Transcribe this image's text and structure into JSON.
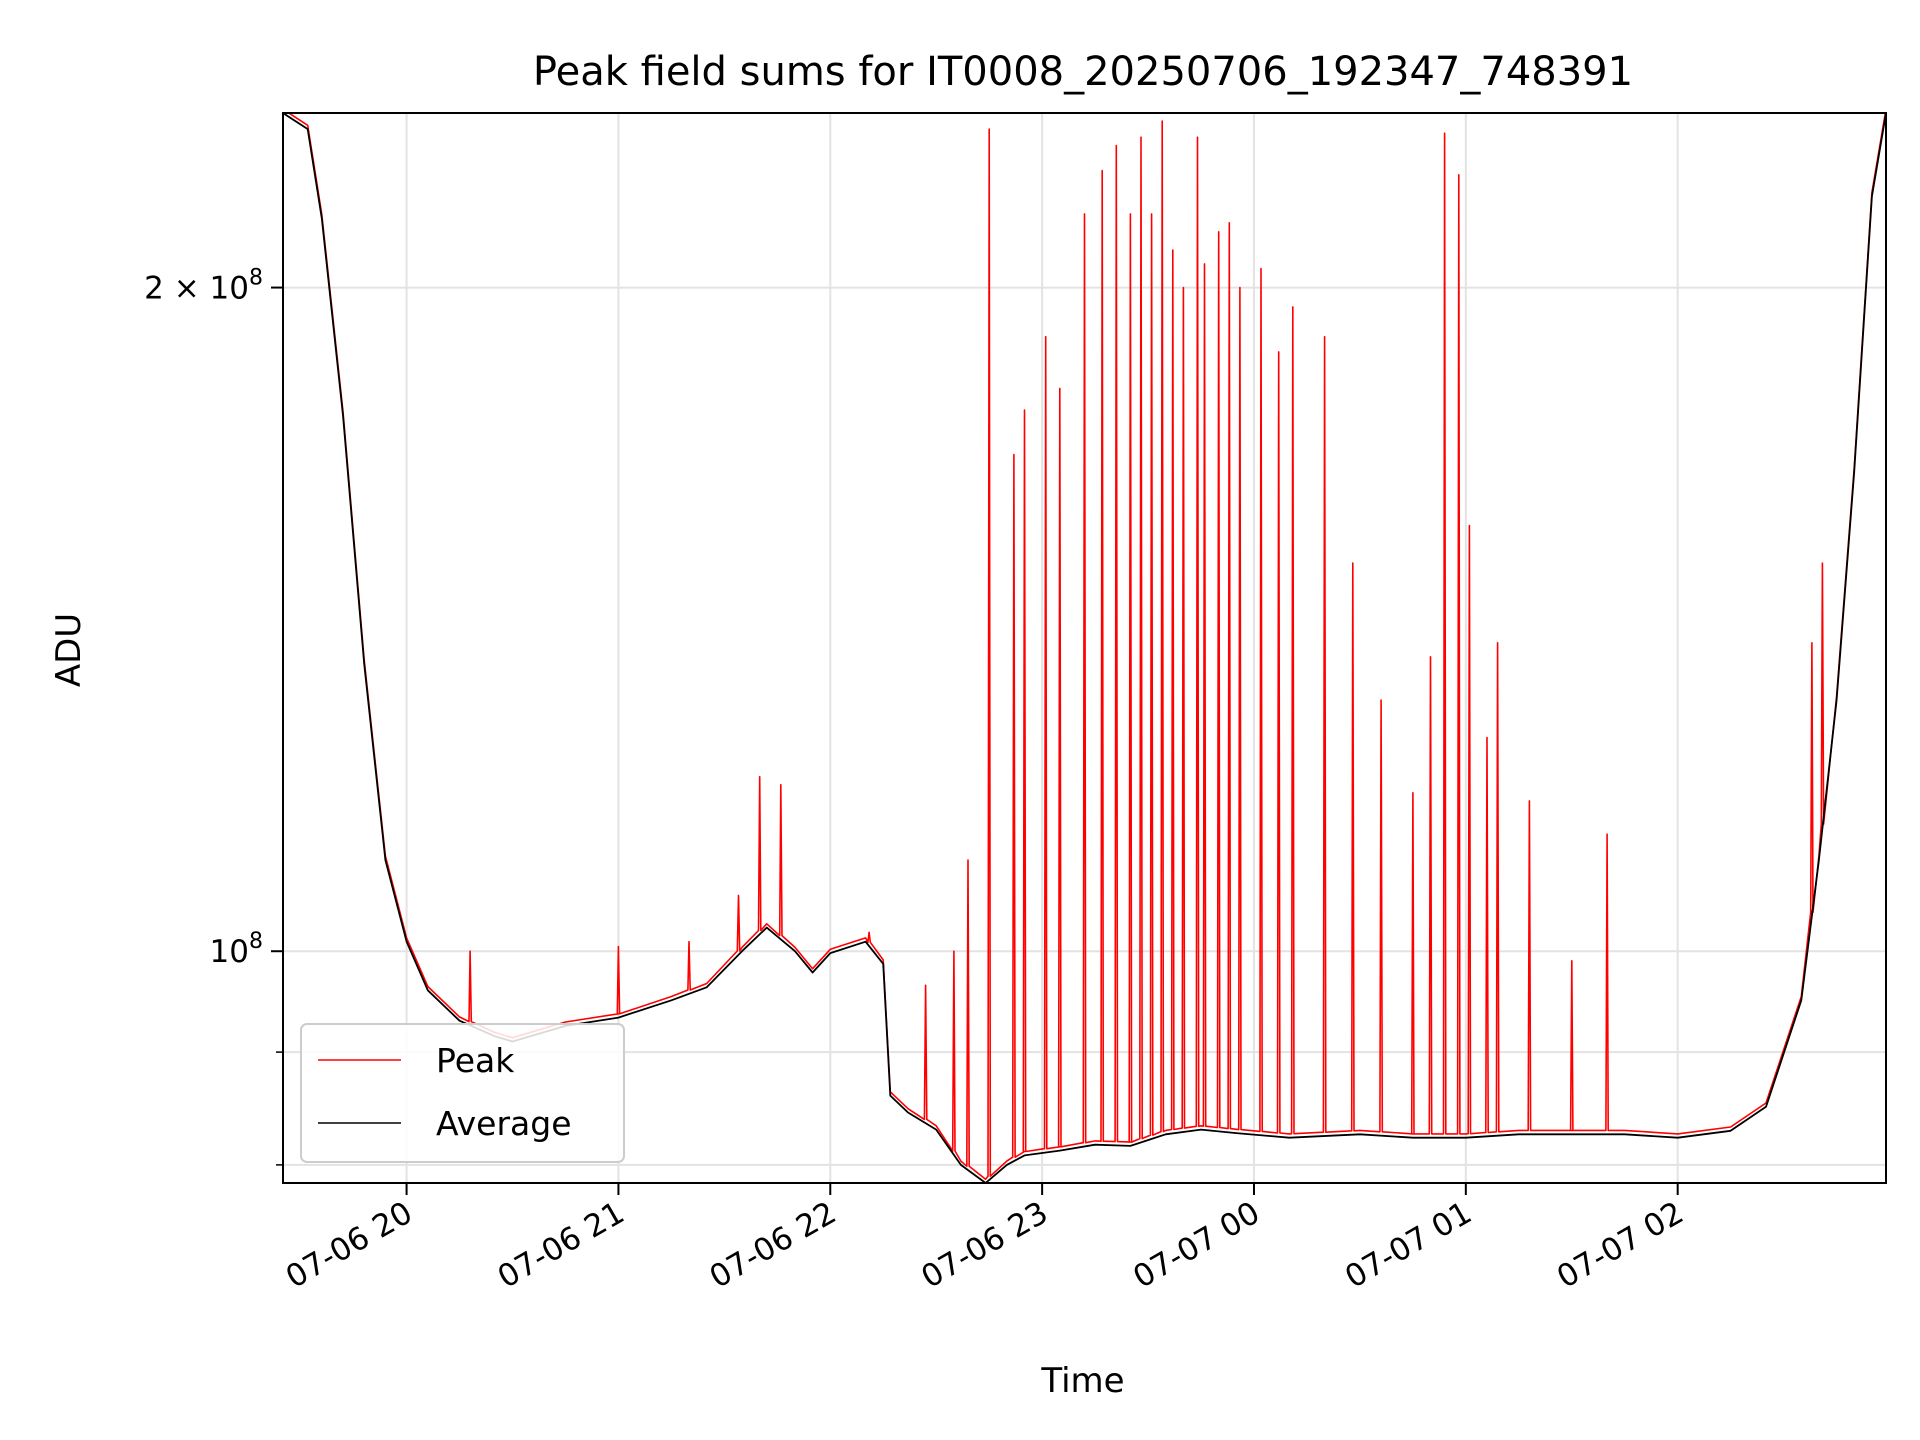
{
  "chart_data": {
    "type": "line",
    "title": "Peak field sums for IT0008_20250706_192347_748391",
    "xlabel": "Time",
    "ylabel": "ADU",
    "y_scale": "log",
    "xlim": [
      "2025-07-06 19:25",
      "2025-07-07 02:59"
    ],
    "ylim": [
      78500000,
      240000000
    ],
    "grid": true,
    "legend_position": "lower-left",
    "x_ticks": [
      {
        "t": "2025-07-06 20:00",
        "label": "07-06 20"
      },
      {
        "t": "2025-07-06 21:00",
        "label": "07-06 21"
      },
      {
        "t": "2025-07-06 22:00",
        "label": "07-06 22"
      },
      {
        "t": "2025-07-06 23:00",
        "label": "07-06 23"
      },
      {
        "t": "2025-07-07 00:00",
        "label": "07-07 00"
      },
      {
        "t": "2025-07-07 01:00",
        "label": "07-07 01"
      },
      {
        "t": "2025-07-07 02:00",
        "label": "07-07 02"
      }
    ],
    "y_ticks": [
      {
        "value": 200000000,
        "base": "2 × 10",
        "exp": "8"
      },
      {
        "value": 100000000,
        "base": "10",
        "exp": "8"
      }
    ],
    "y_minor_ticks": [
      90000000,
      80000000
    ],
    "series": [
      {
        "name": "Average",
        "color": "#000000",
        "points": [
          [
            "2025-07-06 19:25",
            240000000
          ],
          [
            "2025-07-06 19:32",
            236000000
          ],
          [
            "2025-07-06 19:36",
            215000000
          ],
          [
            "2025-07-06 19:42",
            175000000
          ],
          [
            "2025-07-06 19:48",
            135000000
          ],
          [
            "2025-07-06 19:54",
            110000000
          ],
          [
            "2025-07-06 20:00",
            101000000
          ],
          [
            "2025-07-06 20:06",
            96000000
          ],
          [
            "2025-07-06 20:15",
            93000000
          ],
          [
            "2025-07-06 20:25",
            91500000
          ],
          [
            "2025-07-06 20:30",
            91000000
          ],
          [
            "2025-07-06 20:45",
            92500000
          ],
          [
            "2025-07-06 21:00",
            93300000
          ],
          [
            "2025-07-06 21:15",
            95000000
          ],
          [
            "2025-07-06 21:25",
            96300000
          ],
          [
            "2025-07-06 21:35",
            100000000
          ],
          [
            "2025-07-06 21:42",
            102500000
          ],
          [
            "2025-07-06 21:50",
            100000000
          ],
          [
            "2025-07-06 21:55",
            97800000
          ],
          [
            "2025-07-06 22:00",
            99800000
          ],
          [
            "2025-07-06 22:10",
            101000000
          ],
          [
            "2025-07-06 22:15",
            98700000
          ],
          [
            "2025-07-06 22:17",
            86000000
          ],
          [
            "2025-07-06 22:22",
            84500000
          ],
          [
            "2025-07-06 22:30",
            83000000
          ],
          [
            "2025-07-06 22:37",
            80000000
          ],
          [
            "2025-07-06 22:44",
            78500000
          ],
          [
            "2025-07-06 22:50",
            80000000
          ],
          [
            "2025-07-06 22:55",
            80800000
          ],
          [
            "2025-07-06 23:05",
            81200000
          ],
          [
            "2025-07-06 23:15",
            81700000
          ],
          [
            "2025-07-06 23:25",
            81600000
          ],
          [
            "2025-07-06 23:35",
            82600000
          ],
          [
            "2025-07-06 23:45",
            83000000
          ],
          [
            "2025-07-06 23:55",
            82700000
          ],
          [
            "2025-07-07 00:10",
            82300000
          ],
          [
            "2025-07-07 00:30",
            82600000
          ],
          [
            "2025-07-07 00:45",
            82300000
          ],
          [
            "2025-07-07 01:00",
            82300000
          ],
          [
            "2025-07-07 01:15",
            82600000
          ],
          [
            "2025-07-07 01:30",
            82600000
          ],
          [
            "2025-07-07 01:45",
            82600000
          ],
          [
            "2025-07-07 02:00",
            82300000
          ],
          [
            "2025-07-07 02:15",
            82900000
          ],
          [
            "2025-07-07 02:25",
            85000000
          ],
          [
            "2025-07-07 02:35",
            95000000
          ],
          [
            "2025-07-07 02:40",
            110000000
          ],
          [
            "2025-07-07 02:45",
            130000000
          ],
          [
            "2025-07-07 02:50",
            165000000
          ],
          [
            "2025-07-07 02:55",
            220000000
          ],
          [
            "2025-07-07 02:59",
            240000000
          ]
        ]
      },
      {
        "name": "Peak",
        "color": "#ff0000",
        "follows": "Average",
        "spikes": [
          [
            "2025-07-06 20:18",
            100000000
          ],
          [
            "2025-07-06 21:00",
            100500000
          ],
          [
            "2025-07-06 21:20",
            101000000
          ],
          [
            "2025-07-06 21:34",
            106000000
          ],
          [
            "2025-07-06 21:40",
            120000000
          ],
          [
            "2025-07-06 21:46",
            119000000
          ],
          [
            "2025-07-06 22:11",
            102000000
          ],
          [
            "2025-07-06 22:27",
            96500000
          ],
          [
            "2025-07-06 22:35",
            100000000
          ],
          [
            "2025-07-06 22:39",
            110000000
          ],
          [
            "2025-07-06 22:45",
            236000000
          ],
          [
            "2025-07-06 22:52",
            168000000
          ],
          [
            "2025-07-06 22:55",
            176000000
          ],
          [
            "2025-07-06 23:01",
            190000000
          ],
          [
            "2025-07-06 23:05",
            180000000
          ],
          [
            "2025-07-06 23:12",
            216000000
          ],
          [
            "2025-07-06 23:17",
            226000000
          ],
          [
            "2025-07-06 23:21",
            232000000
          ],
          [
            "2025-07-06 23:25",
            216000000
          ],
          [
            "2025-07-06 23:28",
            234000000
          ],
          [
            "2025-07-06 23:31",
            216000000
          ],
          [
            "2025-07-06 23:34",
            238000000
          ],
          [
            "2025-07-06 23:37",
            208000000
          ],
          [
            "2025-07-06 23:40",
            200000000
          ],
          [
            "2025-07-06 23:44",
            234000000
          ],
          [
            "2025-07-06 23:46",
            205000000
          ],
          [
            "2025-07-06 23:50",
            212000000
          ],
          [
            "2025-07-06 23:53",
            214000000
          ],
          [
            "2025-07-06 23:56",
            200000000
          ],
          [
            "2025-07-07 00:02",
            204000000
          ],
          [
            "2025-07-07 00:07",
            187000000
          ],
          [
            "2025-07-07 00:11",
            196000000
          ],
          [
            "2025-07-07 00:20",
            190000000
          ],
          [
            "2025-07-07 00:28",
            150000000
          ],
          [
            "2025-07-07 00:36",
            130000000
          ],
          [
            "2025-07-07 00:45",
            118000000
          ],
          [
            "2025-07-07 00:50",
            136000000
          ],
          [
            "2025-07-07 00:54",
            235000000
          ],
          [
            "2025-07-07 00:58",
            225000000
          ],
          [
            "2025-07-07 01:01",
            156000000
          ],
          [
            "2025-07-07 01:06",
            125000000
          ],
          [
            "2025-07-07 01:09",
            138000000
          ],
          [
            "2025-07-07 01:18",
            117000000
          ],
          [
            "2025-07-07 01:30",
            99000000
          ],
          [
            "2025-07-07 01:40",
            113000000
          ],
          [
            "2025-07-07 02:38",
            138000000
          ],
          [
            "2025-07-07 02:41",
            150000000
          ]
        ]
      }
    ]
  }
}
